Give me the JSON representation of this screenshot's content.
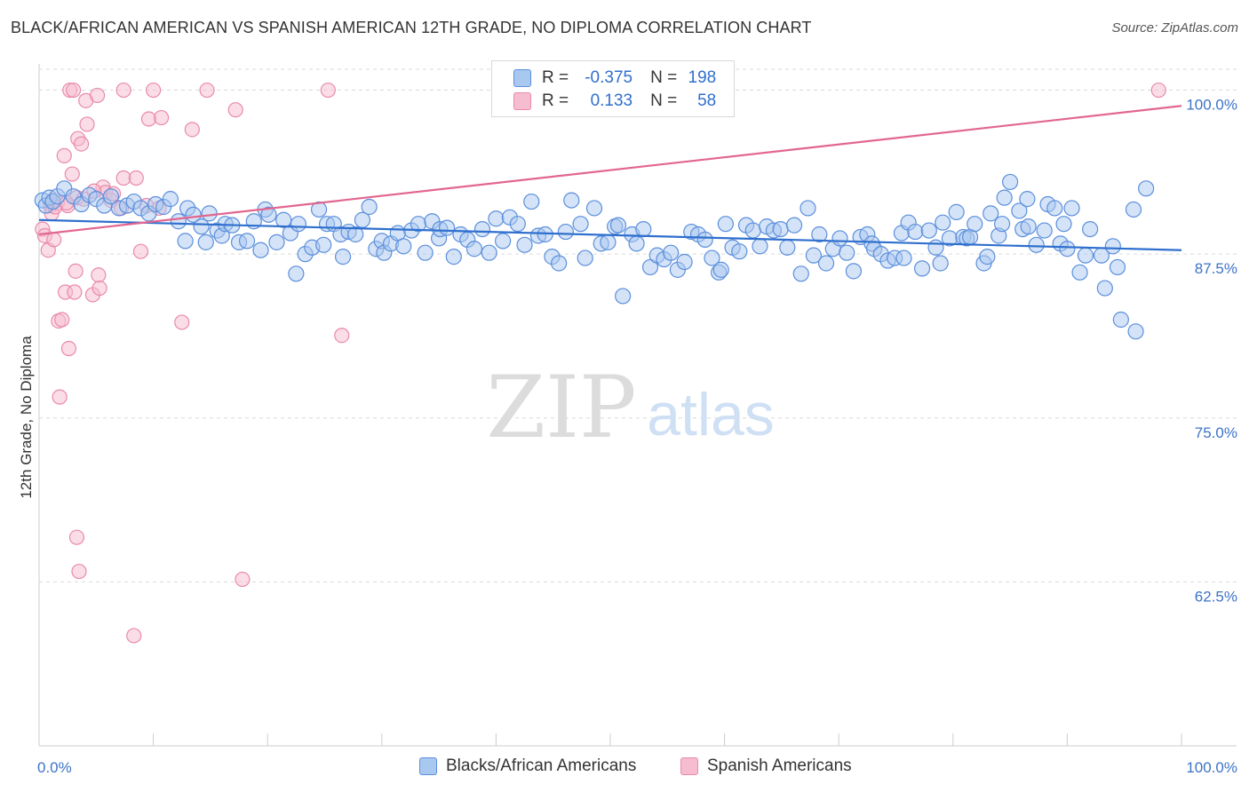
{
  "title": "BLACK/AFRICAN AMERICAN VS SPANISH AMERICAN 12TH GRADE, NO DIPLOMA CORRELATION CHART",
  "source": "Source: ZipAtlas.com",
  "watermark": {
    "zip": "ZIP",
    "atlas": "atlas"
  },
  "legend_top": {
    "rows": [
      {
        "r_label": "R =",
        "r_value": "-0.375",
        "n_label": "N =",
        "n_value": "198"
      },
      {
        "r_label": "R =",
        "r_value": "0.133",
        "n_label": "N =",
        "n_value": "58"
      }
    ]
  },
  "legend_bottom": [
    {
      "label": "Blacks/African Americans"
    },
    {
      "label": "Spanish Americans"
    }
  ],
  "colors": {
    "blue_fill": "#a9c8f0",
    "blue_stroke": "#5b8fdc",
    "blue_line": "#2f6fce",
    "pink_fill": "#f6bcd0",
    "pink_stroke": "#e98aab",
    "pink_line": "#e2668f",
    "axis_text": "#3b73c8",
    "grid": "#d9d9d9"
  },
  "chart_data": {
    "type": "scatter",
    "title": "BLACK/AFRICAN AMERICAN VS SPANISH AMERICAN 12TH GRADE, NO DIPLOMA CORRELATION CHART",
    "xlabel": "",
    "ylabel": "12th Grade, No Diploma",
    "xlim": [
      0,
      100
    ],
    "ylim": [
      50,
      102
    ],
    "x_tick_labels": [
      "0.0%",
      "100.0%"
    ],
    "y_ticks": [
      62.5,
      75.0,
      87.5,
      100.0
    ],
    "y_tick_labels": [
      "62.5%",
      "75.0%",
      "87.5%",
      "100.0%"
    ],
    "grid": true,
    "legend_position": "top-center",
    "series": [
      {
        "name": "Blacks/African Americans",
        "r": -0.375,
        "n": 198,
        "trend": {
          "x": [
            0,
            100
          ],
          "y": [
            90.1,
            87.8
          ]
        },
        "points": [
          [
            0.3,
            91.6
          ],
          [
            0.6,
            91.2
          ],
          [
            0.9,
            91.8
          ],
          [
            1.2,
            91.5
          ],
          [
            1.6,
            91.9
          ],
          [
            2.2,
            92.5
          ],
          [
            3.0,
            91.9
          ],
          [
            3.7,
            91.3
          ],
          [
            4.4,
            92.0
          ],
          [
            5.0,
            91.7
          ],
          [
            5.7,
            91.2
          ],
          [
            6.3,
            91.9
          ],
          [
            7.0,
            91.0
          ],
          [
            7.7,
            91.2
          ],
          [
            8.3,
            91.5
          ],
          [
            8.9,
            91.0
          ],
          [
            9.6,
            90.6
          ],
          [
            10.2,
            91.3
          ],
          [
            10.9,
            91.1
          ],
          [
            11.5,
            91.7
          ],
          [
            12.2,
            90.0
          ],
          [
            12.8,
            88.5
          ],
          [
            13.0,
            91.0
          ],
          [
            13.5,
            90.5
          ],
          [
            14.2,
            89.6
          ],
          [
            14.6,
            88.4
          ],
          [
            14.9,
            90.6
          ],
          [
            15.6,
            89.3
          ],
          [
            16.0,
            88.9
          ],
          [
            16.3,
            89.8
          ],
          [
            16.9,
            89.7
          ],
          [
            17.5,
            88.4
          ],
          [
            18.2,
            88.5
          ],
          [
            18.8,
            90.0
          ],
          [
            19.4,
            87.8
          ],
          [
            19.8,
            90.9
          ],
          [
            20.1,
            90.5
          ],
          [
            20.8,
            88.4
          ],
          [
            21.4,
            90.1
          ],
          [
            22.0,
            89.1
          ],
          [
            22.7,
            89.8
          ],
          [
            22.5,
            86.0
          ],
          [
            23.3,
            87.5
          ],
          [
            23.9,
            88.0
          ],
          [
            24.5,
            90.9
          ],
          [
            24.9,
            88.2
          ],
          [
            25.2,
            89.8
          ],
          [
            25.8,
            89.8
          ],
          [
            26.4,
            89.0
          ],
          [
            26.6,
            87.3
          ],
          [
            27.1,
            89.2
          ],
          [
            27.7,
            89.0
          ],
          [
            28.3,
            90.1
          ],
          [
            28.9,
            91.1
          ],
          [
            29.5,
            87.9
          ],
          [
            30.0,
            88.5
          ],
          [
            30.2,
            87.6
          ],
          [
            30.8,
            88.3
          ],
          [
            31.4,
            89.1
          ],
          [
            31.9,
            88.1
          ],
          [
            32.6,
            89.3
          ],
          [
            33.2,
            89.8
          ],
          [
            33.8,
            87.6
          ],
          [
            34.4,
            90.0
          ],
          [
            35.0,
            88.7
          ],
          [
            35.1,
            89.4
          ],
          [
            35.7,
            89.5
          ],
          [
            36.3,
            87.3
          ],
          [
            36.9,
            89.0
          ],
          [
            37.5,
            88.6
          ],
          [
            38.1,
            87.9
          ],
          [
            38.8,
            89.4
          ],
          [
            39.4,
            87.6
          ],
          [
            40.0,
            90.2
          ],
          [
            40.6,
            88.5
          ],
          [
            41.2,
            90.3
          ],
          [
            41.9,
            89.8
          ],
          [
            42.5,
            88.2
          ],
          [
            43.1,
            91.5
          ],
          [
            43.7,
            88.9
          ],
          [
            44.3,
            89.0
          ],
          [
            44.9,
            87.3
          ],
          [
            45.5,
            86.8
          ],
          [
            46.1,
            89.2
          ],
          [
            46.6,
            91.6
          ],
          [
            47.4,
            89.8
          ],
          [
            47.8,
            87.2
          ],
          [
            48.6,
            91.0
          ],
          [
            49.2,
            88.3
          ],
          [
            49.8,
            88.4
          ],
          [
            50.4,
            89.6
          ],
          [
            50.7,
            89.7
          ],
          [
            51.1,
            84.3
          ],
          [
            51.9,
            89.0
          ],
          [
            52.3,
            88.3
          ],
          [
            52.9,
            89.4
          ],
          [
            53.5,
            86.5
          ],
          [
            54.1,
            87.4
          ],
          [
            54.7,
            87.1
          ],
          [
            55.3,
            87.6
          ],
          [
            55.9,
            86.3
          ],
          [
            56.5,
            86.9
          ],
          [
            57.1,
            89.2
          ],
          [
            57.7,
            89.0
          ],
          [
            58.3,
            88.6
          ],
          [
            58.9,
            87.2
          ],
          [
            59.5,
            86.1
          ],
          [
            59.7,
            86.3
          ],
          [
            60.1,
            89.8
          ],
          [
            60.7,
            88.0
          ],
          [
            61.3,
            87.7
          ],
          [
            61.9,
            89.7
          ],
          [
            62.5,
            89.3
          ],
          [
            63.1,
            88.1
          ],
          [
            63.7,
            89.6
          ],
          [
            64.3,
            89.3
          ],
          [
            64.9,
            89.4
          ],
          [
            65.5,
            88.0
          ],
          [
            66.1,
            89.7
          ],
          [
            66.7,
            86.0
          ],
          [
            67.3,
            91.0
          ],
          [
            67.8,
            87.4
          ],
          [
            68.3,
            89.0
          ],
          [
            68.9,
            86.8
          ],
          [
            69.5,
            87.9
          ],
          [
            70.1,
            88.7
          ],
          [
            70.7,
            87.6
          ],
          [
            71.3,
            86.2
          ],
          [
            71.9,
            88.8
          ],
          [
            72.5,
            89.0
          ],
          [
            72.9,
            88.3
          ],
          [
            73.1,
            87.9
          ],
          [
            73.7,
            87.5
          ],
          [
            74.3,
            87.0
          ],
          [
            74.9,
            87.2
          ],
          [
            75.5,
            89.1
          ],
          [
            75.7,
            87.2
          ],
          [
            76.1,
            89.9
          ],
          [
            76.7,
            89.2
          ],
          [
            77.3,
            86.4
          ],
          [
            77.9,
            89.3
          ],
          [
            78.5,
            88.0
          ],
          [
            78.9,
            86.8
          ],
          [
            79.1,
            89.9
          ],
          [
            79.7,
            88.7
          ],
          [
            80.3,
            90.7
          ],
          [
            80.9,
            88.8
          ],
          [
            81.2,
            88.7
          ],
          [
            81.5,
            88.8
          ],
          [
            81.9,
            89.8
          ],
          [
            82.7,
            86.8
          ],
          [
            83.0,
            87.3
          ],
          [
            83.3,
            90.6
          ],
          [
            84.0,
            88.9
          ],
          [
            84.3,
            89.8
          ],
          [
            84.5,
            91.8
          ],
          [
            85.0,
            93.0
          ],
          [
            85.8,
            90.8
          ],
          [
            86.1,
            89.4
          ],
          [
            86.5,
            91.7
          ],
          [
            86.6,
            89.6
          ],
          [
            87.3,
            88.2
          ],
          [
            88.0,
            89.3
          ],
          [
            88.3,
            91.3
          ],
          [
            88.9,
            91.0
          ],
          [
            89.4,
            88.3
          ],
          [
            89.7,
            89.8
          ],
          [
            90.0,
            87.9
          ],
          [
            90.4,
            91.0
          ],
          [
            91.1,
            86.1
          ],
          [
            91.6,
            87.4
          ],
          [
            92.0,
            89.4
          ],
          [
            93.0,
            87.4
          ],
          [
            93.3,
            84.9
          ],
          [
            94.0,
            88.1
          ],
          [
            94.4,
            86.5
          ],
          [
            94.7,
            82.5
          ],
          [
            95.8,
            90.9
          ],
          [
            96.0,
            81.6
          ],
          [
            96.9,
            92.5
          ]
        ]
      },
      {
        "name": "Spanish Americans",
        "r": 0.133,
        "n": 58,
        "trend": {
          "x": [
            0,
            100
          ],
          "y": [
            89.0,
            98.8
          ]
        },
        "points": [
          [
            0.3,
            89.4
          ],
          [
            0.5,
            88.9
          ],
          [
            0.8,
            87.8
          ],
          [
            1.0,
            91.2
          ],
          [
            1.1,
            90.6
          ],
          [
            1.2,
            91.6
          ],
          [
            1.3,
            88.6
          ],
          [
            1.6,
            91.4
          ],
          [
            1.7,
            82.4
          ],
          [
            1.8,
            76.6
          ],
          [
            2.0,
            82.5
          ],
          [
            2.2,
            95.0
          ],
          [
            2.3,
            84.6
          ],
          [
            2.5,
            91.2
          ],
          [
            2.6,
            80.3
          ],
          [
            2.7,
            100.0
          ],
          [
            2.9,
            93.6
          ],
          [
            3.0,
            100.0
          ],
          [
            3.1,
            84.6
          ],
          [
            3.2,
            86.2
          ],
          [
            3.3,
            91.8
          ],
          [
            3.3,
            65.9
          ],
          [
            3.4,
            96.3
          ],
          [
            3.5,
            63.3
          ],
          [
            3.7,
            95.9
          ],
          [
            4.1,
            99.2
          ],
          [
            4.2,
            97.4
          ],
          [
            4.7,
            84.4
          ],
          [
            5.1,
            99.6
          ],
          [
            5.2,
            85.9
          ],
          [
            5.3,
            84.9
          ],
          [
            5.6,
            92.6
          ],
          [
            5.8,
            92.2
          ],
          [
            6.3,
            91.6
          ],
          [
            6.5,
            92.1
          ],
          [
            7.2,
            91.0
          ],
          [
            7.4,
            93.3
          ],
          [
            7.4,
            100.0
          ],
          [
            8.3,
            58.4
          ],
          [
            8.5,
            93.3
          ],
          [
            8.9,
            87.7
          ],
          [
            9.4,
            91.2
          ],
          [
            9.6,
            97.8
          ],
          [
            10.0,
            100.0
          ],
          [
            10.5,
            91.0
          ],
          [
            10.7,
            97.9
          ],
          [
            12.5,
            82.3
          ],
          [
            13.4,
            97.0
          ],
          [
            14.7,
            100.0
          ],
          [
            17.2,
            98.5
          ],
          [
            17.8,
            62.7
          ],
          [
            25.3,
            100.0
          ],
          [
            26.5,
            81.3
          ],
          [
            98.0,
            100.0
          ],
          [
            1.4,
            91.1
          ],
          [
            2.4,
            91.4
          ],
          [
            4.8,
            92.3
          ],
          [
            3.9,
            91.7
          ]
        ]
      }
    ]
  }
}
